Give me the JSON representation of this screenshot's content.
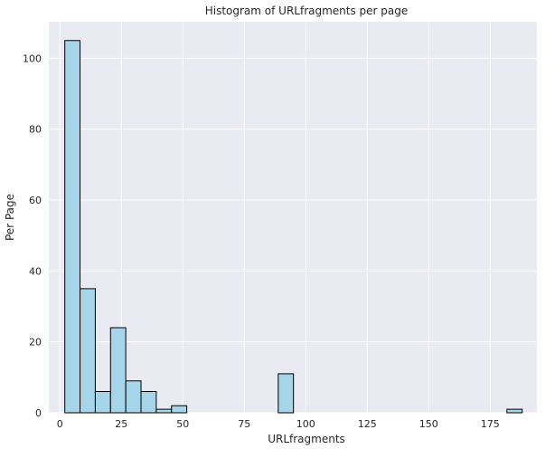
{
  "chart_data": {
    "type": "bar",
    "title": "Histogram of URLfragments per page",
    "xlabel": "URLfragments",
    "ylabel": "Per Page",
    "xlim": [
      -4.5,
      194
    ],
    "ylim": [
      0,
      110.3
    ],
    "x_ticks": [
      0,
      25,
      50,
      75,
      100,
      125,
      150,
      175
    ],
    "y_ticks": [
      0,
      20,
      40,
      60,
      80,
      100
    ],
    "bins": [
      {
        "x0": 2.0,
        "x1": 8.2,
        "value": 105
      },
      {
        "x0": 8.2,
        "x1": 14.4,
        "value": 35
      },
      {
        "x0": 14.4,
        "x1": 20.6,
        "value": 6
      },
      {
        "x0": 20.6,
        "x1": 26.8,
        "value": 24
      },
      {
        "x0": 26.8,
        "x1": 33.0,
        "value": 9
      },
      {
        "x0": 33.0,
        "x1": 39.2,
        "value": 6
      },
      {
        "x0": 39.2,
        "x1": 45.4,
        "value": 1
      },
      {
        "x0": 45.4,
        "x1": 51.6,
        "value": 2
      },
      {
        "x0": 51.6,
        "x1": 57.8,
        "value": 0
      },
      {
        "x0": 57.8,
        "x1": 64.0,
        "value": 0
      },
      {
        "x0": 64.0,
        "x1": 70.2,
        "value": 0
      },
      {
        "x0": 70.2,
        "x1": 76.4,
        "value": 0
      },
      {
        "x0": 76.4,
        "x1": 82.6,
        "value": 0
      },
      {
        "x0": 82.6,
        "x1": 88.8,
        "value": 0
      },
      {
        "x0": 88.8,
        "x1": 95.0,
        "value": 11
      },
      {
        "x0": 95.0,
        "x1": 101.2,
        "value": 0
      },
      {
        "x0": 101.2,
        "x1": 107.4,
        "value": 0
      },
      {
        "x0": 107.4,
        "x1": 113.6,
        "value": 0
      },
      {
        "x0": 113.6,
        "x1": 119.8,
        "value": 0
      },
      {
        "x0": 119.8,
        "x1": 126.0,
        "value": 0
      },
      {
        "x0": 126.0,
        "x1": 132.2,
        "value": 0
      },
      {
        "x0": 132.2,
        "x1": 138.4,
        "value": 0
      },
      {
        "x0": 138.4,
        "x1": 144.6,
        "value": 0
      },
      {
        "x0": 144.6,
        "x1": 150.8,
        "value": 0
      },
      {
        "x0": 150.8,
        "x1": 157.0,
        "value": 0
      },
      {
        "x0": 157.0,
        "x1": 163.2,
        "value": 0
      },
      {
        "x0": 163.2,
        "x1": 169.4,
        "value": 0
      },
      {
        "x0": 169.4,
        "x1": 175.6,
        "value": 0
      },
      {
        "x0": 175.6,
        "x1": 181.8,
        "value": 0
      },
      {
        "x0": 181.8,
        "x1": 188.0,
        "value": 1
      }
    ],
    "grid": true,
    "colors": {
      "bar_fill": "#a6d5ea",
      "bar_edge": "#000000",
      "plot_background": "#eaeaf2",
      "grid": "#ffffff"
    }
  }
}
